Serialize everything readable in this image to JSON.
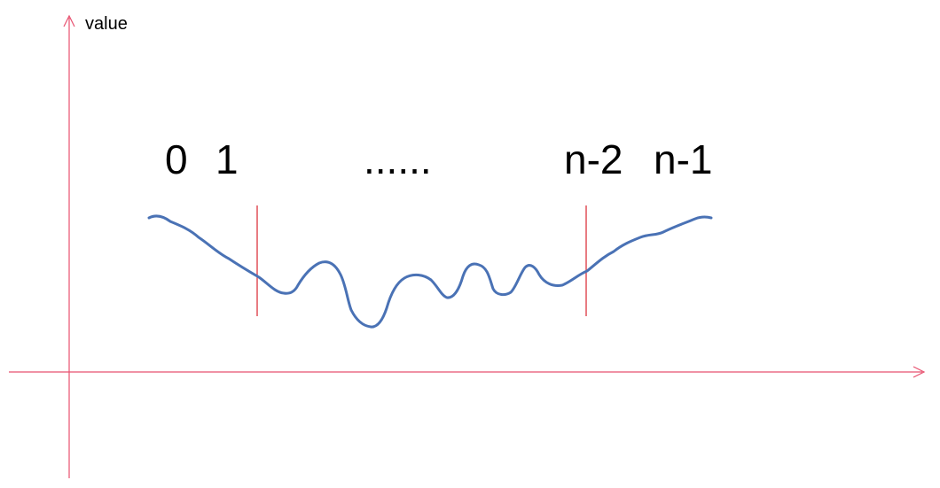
{
  "axes": {
    "y_label": "value",
    "color": "#e8516f"
  },
  "labels": {
    "first": "0",
    "second": "1",
    "ellipsis": "......",
    "second_last": "n-2",
    "last": "n-1"
  },
  "curve": {
    "color": "#4a72b5"
  },
  "markers": {
    "color": "#d9232e"
  }
}
